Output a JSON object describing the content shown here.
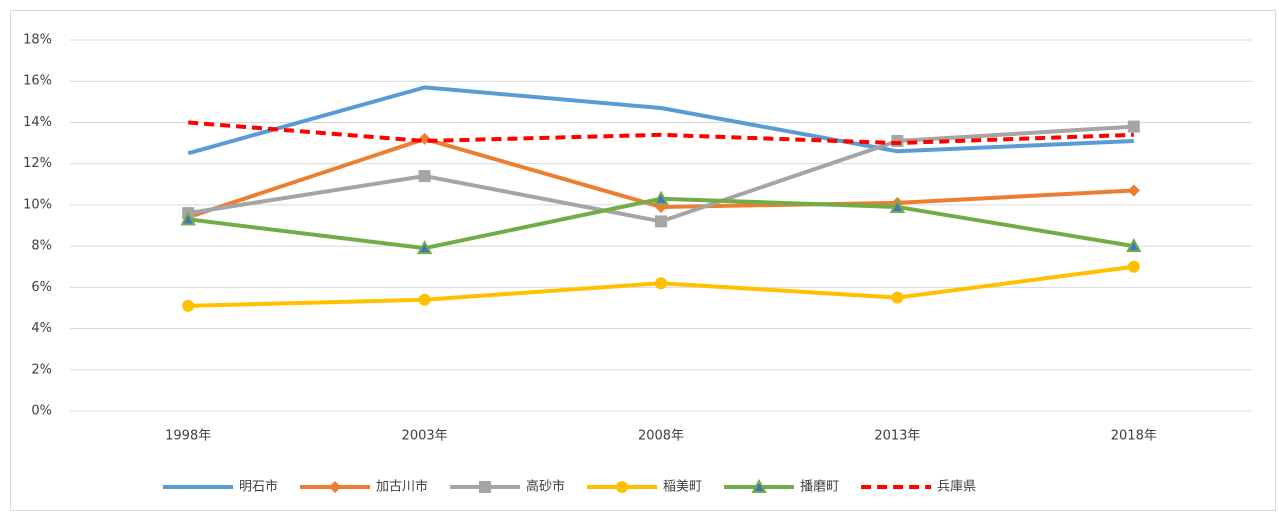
{
  "chart_data": {
    "type": "line",
    "categories": [
      "1998年",
      "2003年",
      "2008年",
      "2013年",
      "2018年"
    ],
    "series": [
      {
        "name": "明石市",
        "color": "#5b9bd5",
        "marker": "none",
        "values": [
          12.5,
          15.7,
          14.7,
          12.6,
          13.1
        ]
      },
      {
        "name": "加古川市",
        "color": "#ed7d31",
        "marker": "diamond",
        "values": [
          9.4,
          13.2,
          9.9,
          10.1,
          10.7
        ]
      },
      {
        "name": "高砂市",
        "color": "#a5a5a5",
        "marker": "square",
        "values": [
          9.6,
          11.4,
          9.2,
          13.1,
          13.8
        ]
      },
      {
        "name": "稲美町",
        "color": "#ffc000",
        "marker": "circle",
        "values": [
          5.1,
          5.4,
          6.2,
          5.5,
          7.0
        ]
      },
      {
        "name": "播磨町",
        "color": "#70ad47",
        "marker": "triangle",
        "values": [
          9.3,
          7.9,
          10.3,
          9.9,
          8.0
        ]
      },
      {
        "name": "兵庫県",
        "color": "#ff0000",
        "marker": "none",
        "dashed": true,
        "values": [
          14.0,
          13.1,
          13.4,
          13.0,
          13.4
        ]
      }
    ],
    "ylim": [
      0,
      18
    ],
    "yticks": [
      {
        "value": 0,
        "label": "0%"
      },
      {
        "value": 2,
        "label": "2%"
      },
      {
        "value": 4,
        "label": "4%"
      },
      {
        "value": 6,
        "label": "6%"
      },
      {
        "value": 8,
        "label": "8%"
      },
      {
        "value": 10,
        "label": "10%"
      },
      {
        "value": 12,
        "label": "12%"
      },
      {
        "value": 14,
        "label": "14%"
      },
      {
        "value": 16,
        "label": "16%"
      },
      {
        "value": 18,
        "label": "18%"
      }
    ],
    "grid": true,
    "legend": "bottom"
  }
}
